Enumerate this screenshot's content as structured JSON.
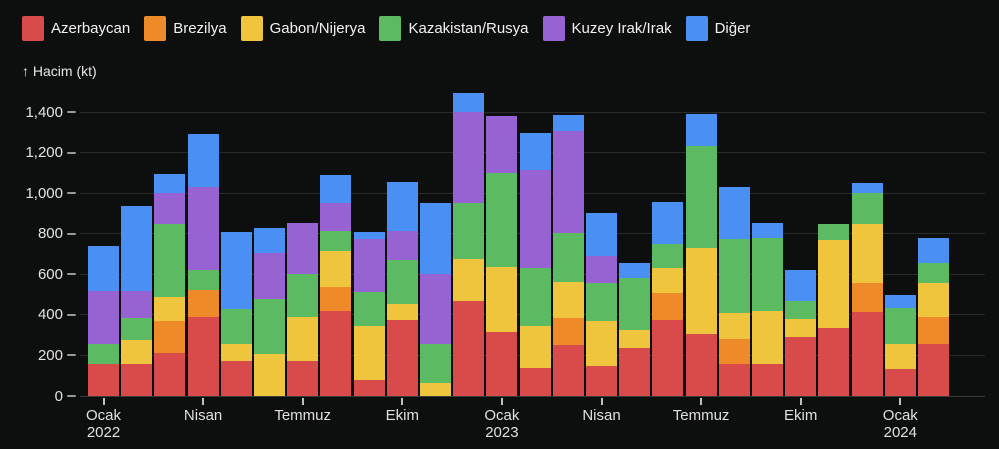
{
  "y_axis_title": "↑ Hacim (kt)",
  "colors": {
    "background": "#0d0e0e",
    "grid": "#2a2a2a",
    "axis_text": "#e3e3e3",
    "tick_mark": "#b5b5b5"
  },
  "chart_data": {
    "type": "bar",
    "stacked": true,
    "title": "",
    "xlabel": "",
    "ylabel": "↑ Hacim (kt)",
    "ylim": [
      0,
      1400
    ],
    "grid": true,
    "legend_position": "top-left",
    "yticks": [
      {
        "value": 0,
        "label": "0"
      },
      {
        "value": 200,
        "label": "200"
      },
      {
        "value": 400,
        "label": "400"
      },
      {
        "value": 600,
        "label": "600"
      },
      {
        "value": 800,
        "label": "800"
      },
      {
        "value": 1000,
        "label": "1,000"
      },
      {
        "value": 1200,
        "label": "1,200"
      },
      {
        "value": 1400,
        "label": "1,400"
      }
    ],
    "x_months": [
      "Ocak 2022",
      "Şubat 2022",
      "Mart 2022",
      "Nisan 2022",
      "Mayıs 2022",
      "Haziran 2022",
      "Temmuz 2022",
      "Ağustos 2022",
      "Eylül 2022",
      "Ekim 2022",
      "Kasım 2022",
      "Aralık 2022",
      "Ocak 2023",
      "Şubat 2023",
      "Mart 2023",
      "Nisan 2023",
      "Mayıs 2023",
      "Haziran 2023",
      "Temmuz 2023",
      "Ağustos 2023",
      "Eylül 2023",
      "Ekim 2023",
      "Kasım 2023",
      "Aralık 2023",
      "Ocak 2024",
      "Şubat 2024"
    ],
    "x_tick_labels": [
      {
        "index": 0,
        "lines": [
          "Ocak",
          "2022"
        ]
      },
      {
        "index": 3,
        "lines": [
          "Nisan"
        ]
      },
      {
        "index": 6,
        "lines": [
          "Temmuz"
        ]
      },
      {
        "index": 9,
        "lines": [
          "Ekim"
        ]
      },
      {
        "index": 12,
        "lines": [
          "Ocak",
          "2023"
        ]
      },
      {
        "index": 15,
        "lines": [
          "Nisan"
        ]
      },
      {
        "index": 18,
        "lines": [
          "Temmuz"
        ]
      },
      {
        "index": 21,
        "lines": [
          "Ekim"
        ]
      },
      {
        "index": 24,
        "lines": [
          "Ocak",
          "2024"
        ]
      }
    ],
    "series": [
      {
        "name": "Azerbaycan",
        "color": "#d94b4b",
        "values": [
          160,
          160,
          210,
          390,
          175,
          0,
          175,
          420,
          80,
          375,
          0,
          470,
          315,
          140,
          250,
          150,
          235,
          375,
          305,
          160,
          160,
          290,
          335,
          415,
          135,
          255
        ]
      },
      {
        "name": "Brezilya",
        "color": "#ee8a28",
        "values": [
          0,
          0,
          160,
          135,
          0,
          0,
          0,
          115,
          0,
          0,
          0,
          0,
          0,
          0,
          135,
          0,
          0,
          135,
          0,
          120,
          0,
          0,
          0,
          140,
          0,
          135
        ]
      },
      {
        "name": "Gabon/Nijerya",
        "color": "#efc53e",
        "values": [
          0,
          115,
          120,
          0,
          80,
          205,
          215,
          180,
          265,
          80,
          65,
          205,
          320,
          205,
          175,
          220,
          90,
          120,
          425,
          130,
          260,
          90,
          435,
          295,
          120,
          165
        ]
      },
      {
        "name": "Kazakistan/Rusya",
        "color": "#5cbb62",
        "values": [
          95,
          110,
          360,
          95,
          175,
          275,
          210,
          100,
          170,
          215,
          190,
          275,
          465,
          285,
          245,
          185,
          255,
          120,
          505,
          365,
          360,
          90,
          80,
          150,
          180,
          100
        ]
      },
      {
        "name": "Kuzey Irak/Irak",
        "color": "#9763d2",
        "values": [
          265,
          135,
          150,
          410,
          0,
          225,
          255,
          135,
          260,
          145,
          345,
          450,
          280,
          485,
          500,
          135,
          0,
          0,
          0,
          0,
          0,
          0,
          0,
          0,
          0,
          0
        ]
      },
      {
        "name": "Diğer",
        "color": "#4a90f4",
        "values": [
          220,
          415,
          95,
          260,
          380,
          125,
          0,
          140,
          35,
          240,
          350,
          95,
          0,
          180,
          80,
          210,
          75,
          205,
          155,
          255,
          75,
          150,
          0,
          50,
          65,
          125
        ]
      }
    ]
  }
}
